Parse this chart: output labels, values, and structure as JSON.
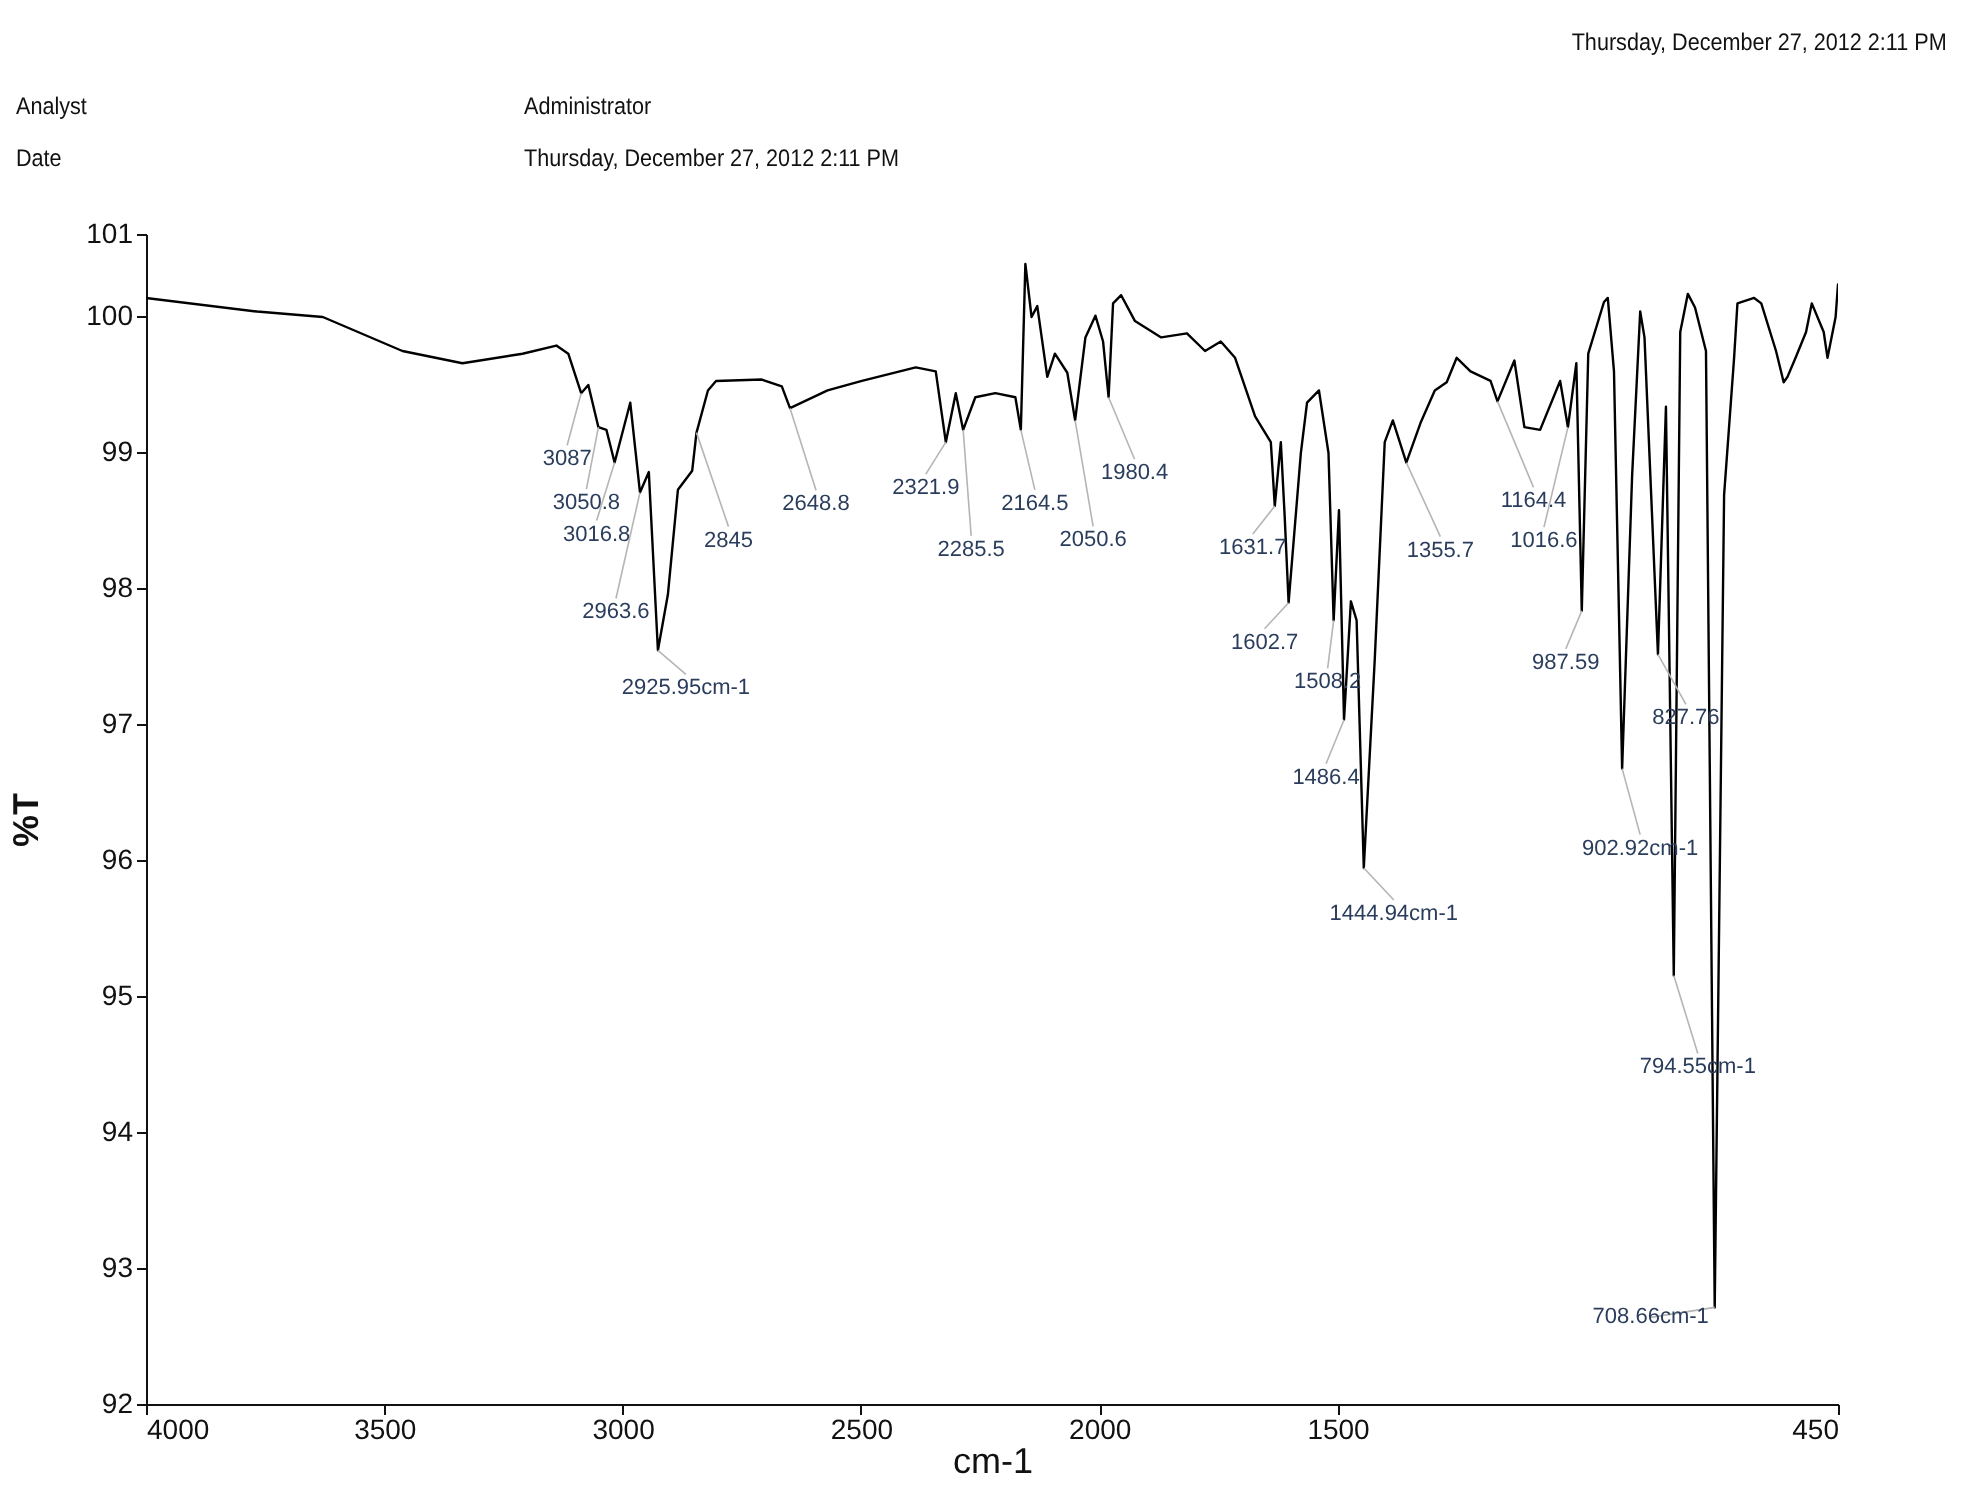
{
  "chart_data": {
    "type": "line",
    "xlabel": "cm-1",
    "ylabel": "%T",
    "color": "#000000",
    "xlim": [
      4000,
      450
    ],
    "xticks": [
      4000,
      3500,
      3000,
      2500,
      2000,
      1500,
      450
    ],
    "ylim": [
      92,
      100.6
    ],
    "yticks": [
      92,
      93,
      94,
      95,
      96,
      97,
      98,
      99,
      100,
      {
        "value": 100.6,
        "label": "101"
      }
    ],
    "x": [
      4000,
      3767,
      3629,
      3462,
      3336,
      3210,
      3139,
      3114,
      3087,
      3072,
      3050.8,
      3034,
      3016.8,
      2984,
      2963.6,
      2945,
      2925.95,
      2905,
      2884,
      2854,
      2845,
      2821,
      2804,
      2708,
      2666,
      2648.8,
      2570,
      2498,
      2385,
      2343,
      2321.9,
      2301,
      2285.5,
      2260,
      2218,
      2176,
      2164.5,
      2155,
      2142,
      2130,
      2109,
      2093,
      2067,
      2050.6,
      2029,
      2008,
      1992,
      1980.4,
      1971,
      1954,
      1925,
      1870,
      1816,
      1778,
      1745,
      1715,
      1673,
      1640,
      1631.7,
      1619,
      1611,
      1602.7,
      1577,
      1564,
      1539,
      1519,
      1508.2,
      1497,
      1486.4,
      1472,
      1460,
      1444.94,
      1422,
      1401,
      1384,
      1355.7,
      1326,
      1296,
      1271,
      1250,
      1221,
      1179,
      1164.4,
      1129,
      1108,
      1075,
      1033,
      1016.6,
      999,
      987.59,
      974,
      941,
      933,
      920,
      902.92,
      882,
      865,
      856,
      827.76,
      811,
      794.55,
      781,
      765,
      750,
      727,
      708.66,
      689,
      668,
      661,
      626,
      611,
      580,
      564,
      556,
      539,
      517,
      505,
      480,
      472,
      455,
      450
    ],
    "values": [
      100.13,
      100.03,
      99.99,
      99.74,
      99.65,
      99.72,
      99.78,
      99.72,
      99.43,
      99.49,
      99.18,
      99.16,
      98.92,
      99.36,
      98.7,
      98.85,
      97.54,
      97.95,
      98.72,
      98.86,
      99.14,
      99.45,
      99.52,
      99.53,
      99.48,
      99.32,
      99.45,
      99.52,
      99.62,
      99.59,
      99.07,
      99.43,
      99.16,
      99.4,
      99.43,
      99.4,
      99.16,
      100.38,
      99.99,
      100.07,
      99.55,
      99.72,
      99.58,
      99.23,
      99.84,
      100.0,
      99.81,
      99.4,
      100.09,
      100.15,
      99.96,
      99.84,
      99.87,
      99.74,
      99.81,
      99.69,
      99.26,
      99.07,
      98.6,
      99.07,
      98.53,
      97.89,
      98.99,
      99.36,
      99.45,
      98.99,
      97.76,
      98.57,
      97.03,
      97.9,
      97.76,
      95.94,
      97.47,
      99.07,
      99.23,
      98.92,
      99.21,
      99.45,
      99.51,
      99.69,
      99.59,
      99.52,
      99.37,
      99.67,
      99.18,
      99.16,
      99.52,
      99.18,
      99.65,
      97.83,
      99.72,
      100.1,
      100.13,
      99.59,
      96.67,
      98.82,
      100.03,
      99.84,
      97.51,
      99.33,
      95.15,
      99.88,
      100.16,
      100.06,
      99.74,
      92.71,
      98.68,
      99.69,
      100.09,
      100.13,
      100.09,
      99.74,
      99.51,
      99.55,
      99.69,
      99.88,
      100.09,
      99.88,
      99.69,
      99.99,
      100.23
    ],
    "annotations": [
      "Thursday, December 27, 2012 2:11 PM",
      "Analyst",
      "Administrator",
      "Date",
      "Thursday, December 27, 2012 2:11 PM",
      {
        "text": "3087",
        "x": 3087,
        "y": 99.43
      },
      {
        "text": "3050.8",
        "x": 3050.8,
        "y": 99.18
      },
      {
        "text": "3016.8",
        "x": 3016.8,
        "y": 98.92
      },
      {
        "text": "2963.6",
        "x": 2963.6,
        "y": 98.7
      },
      {
        "text": "2925.95cm-1",
        "x": 2925.95,
        "y": 97.54
      },
      {
        "text": "2845",
        "x": 2845,
        "y": 99.14
      },
      {
        "text": "2648.8",
        "x": 2648.8,
        "y": 99.32
      },
      {
        "text": "2321.9",
        "x": 2321.9,
        "y": 99.07
      },
      {
        "text": "2285.5",
        "x": 2285.5,
        "y": 99.16
      },
      {
        "text": "2164.5",
        "x": 2164.5,
        "y": 99.16
      },
      {
        "text": "2050.6",
        "x": 2050.6,
        "y": 99.23
      },
      {
        "text": "1980.4",
        "x": 1980.4,
        "y": 99.4
      },
      {
        "text": "1631.7",
        "x": 1631.7,
        "y": 98.6
      },
      {
        "text": "1602.7",
        "x": 1602.7,
        "y": 97.89
      },
      {
        "text": "1508.2",
        "x": 1508.2,
        "y": 97.76
      },
      {
        "text": "1486.4",
        "x": 1486.4,
        "y": 97.03
      },
      {
        "text": "1444.94cm-1",
        "x": 1444.94,
        "y": 95.94
      },
      {
        "text": "1355.7",
        "x": 1355.7,
        "y": 98.92
      },
      {
        "text": "1164.4",
        "x": 1164.4,
        "y": 99.37
      },
      {
        "text": "1016.6",
        "x": 1016.6,
        "y": 99.18
      },
      {
        "text": "987.59",
        "x": 987.59,
        "y": 97.83
      },
      {
        "text": "902.92cm-1",
        "x": 902.92,
        "y": 96.67
      },
      {
        "text": "827.76",
        "x": 827.76,
        "y": 97.51
      },
      {
        "text": "794.55cm-1",
        "x": 794.55,
        "y": 95.15
      },
      {
        "text": "708.66cm-1",
        "x": 708.66,
        "y": 92.71
      }
    ]
  }
}
